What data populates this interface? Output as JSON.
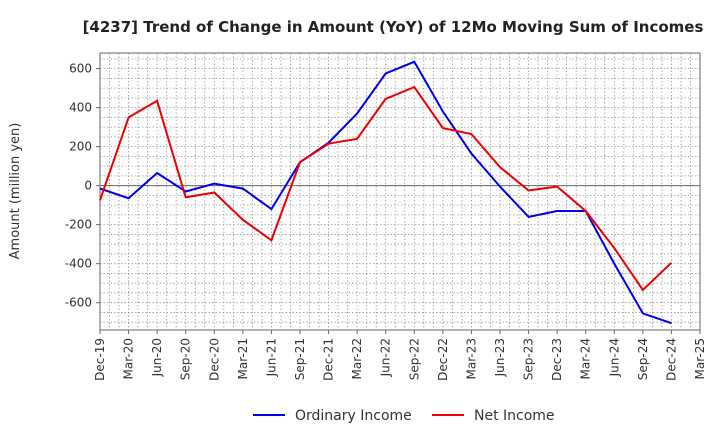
{
  "chart_data": {
    "type": "line",
    "title": "[4237]  Trend of Change in Amount (YoY) of 12Mo Moving Sum of Incomes",
    "xlabel": "",
    "ylabel": "Amount (million yen)",
    "ylim": [
      -740,
      680
    ],
    "yticks": [
      600,
      400,
      200,
      0,
      -200,
      -400,
      -600
    ],
    "ytick_labels": [
      "600",
      "400",
      "200",
      "0",
      "-200",
      "-400",
      "-600"
    ],
    "grid": true,
    "legend_position": "bottom-center",
    "categories": [
      "Dec-19",
      "Mar-20",
      "Jun-20",
      "Sep-20",
      "Dec-20",
      "Mar-21",
      "Jun-21",
      "Sep-21",
      "Dec-21",
      "Mar-22",
      "Jun-22",
      "Sep-22",
      "Dec-22",
      "Mar-23",
      "Jun-23",
      "Sep-23",
      "Dec-23",
      "Mar-24",
      "Jun-24",
      "Sep-24",
      "Dec-24",
      "Mar-25"
    ],
    "series": [
      {
        "name": "Ordinary Income",
        "color": "#0000ee",
        "values": [
          -15,
          -65,
          65,
          -30,
          10,
          -15,
          -120,
          120,
          220,
          370,
          575,
          635,
          380,
          165,
          -5,
          -160,
          -130,
          -130,
          -400,
          -655,
          -705,
          null
        ]
      },
      {
        "name": "Net Income",
        "color": "#ee0000",
        "values": [
          -75,
          350,
          435,
          -60,
          -35,
          -175,
          -280,
          120,
          215,
          240,
          445,
          505,
          295,
          265,
          95,
          -25,
          -5,
          -130,
          -320,
          -535,
          -395,
          null
        ]
      }
    ]
  }
}
